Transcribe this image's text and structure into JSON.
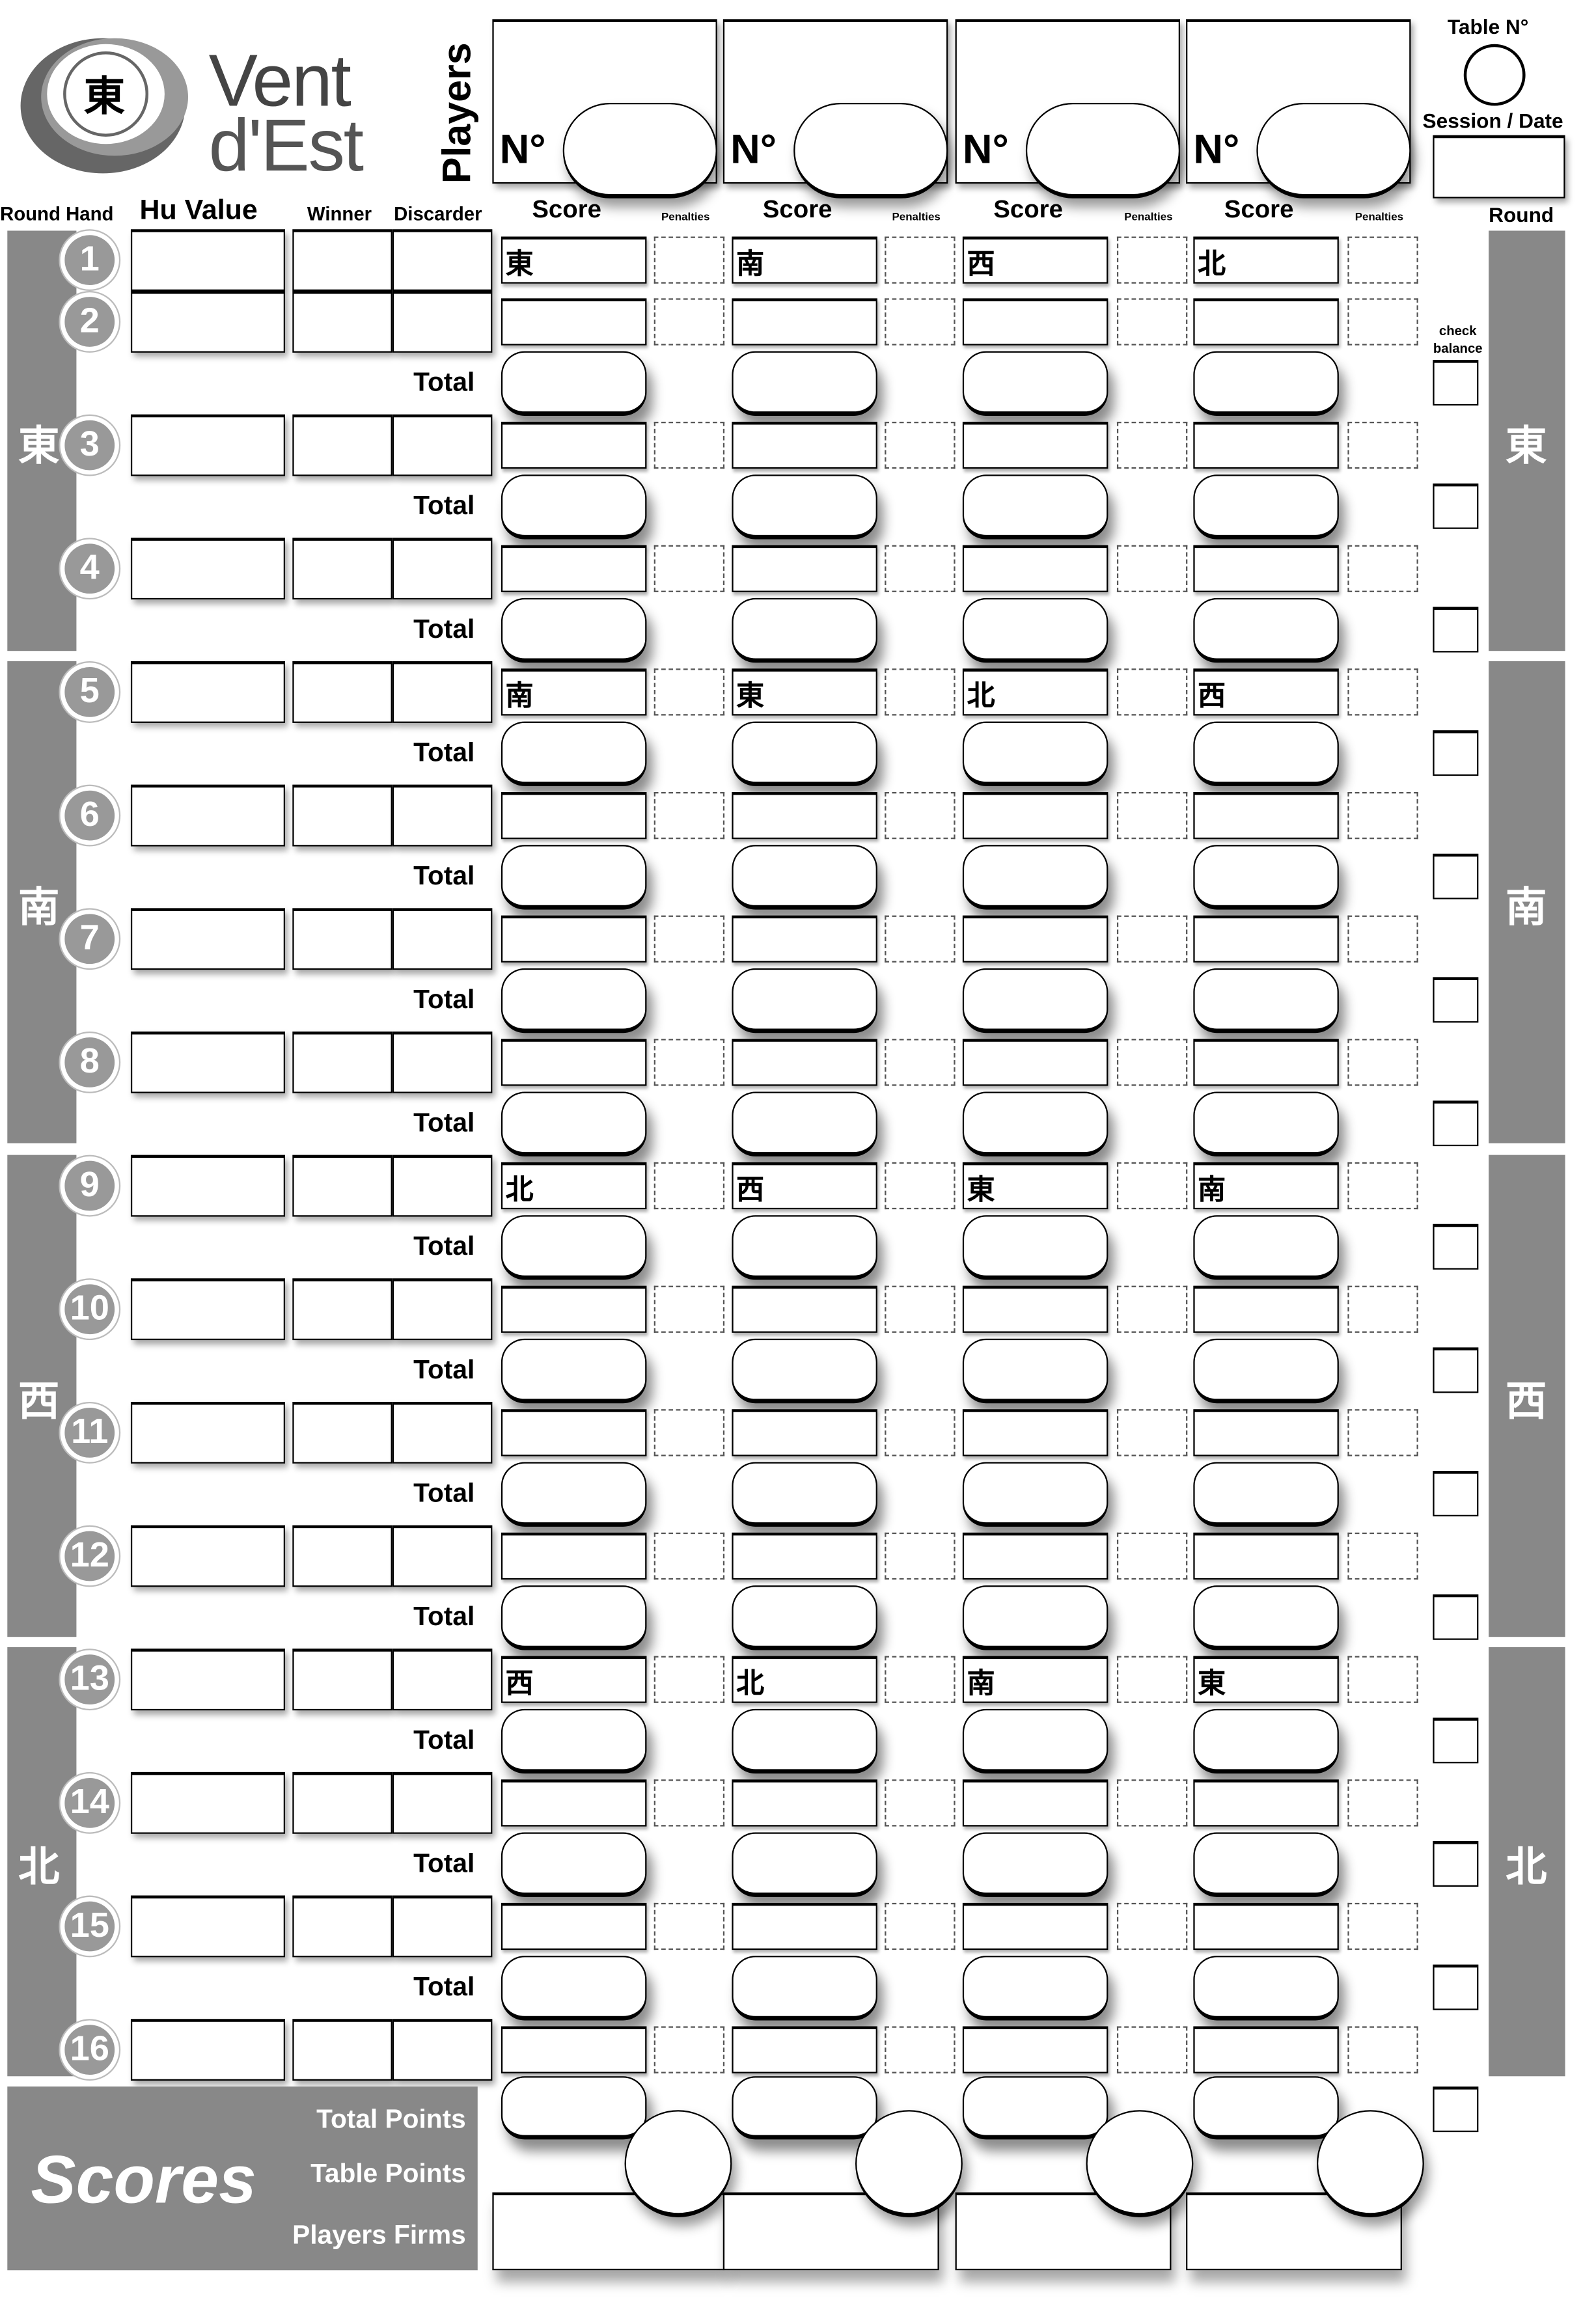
{
  "logo": {
    "line1": "Vent",
    "line2": "d'Est",
    "emblem": "東"
  },
  "players": {
    "title": "Players",
    "number_label": "N°",
    "count": 4
  },
  "table": {
    "table_label": "Table N°",
    "session_label": "Session / Date"
  },
  "headers": {
    "round_hand": "Round Hand",
    "hu_value": "Hu Value",
    "winner": "Winner",
    "discarder": "Discarder",
    "score": "Score",
    "penalties": "Penalties",
    "round": "Round"
  },
  "check_balance": "check balance",
  "total_label": "Total",
  "rounds": [
    {
      "wind": "東",
      "hands": [
        1,
        2,
        3,
        4
      ]
    },
    {
      "wind": "南",
      "hands": [
        5,
        6,
        7,
        8
      ]
    },
    {
      "wind": "西",
      "hands": [
        9,
        10,
        11,
        12
      ]
    },
    {
      "wind": "北",
      "hands": [
        13,
        14,
        15,
        16
      ]
    }
  ],
  "seat_winds": {
    "1": [
      "東",
      "南",
      "西",
      "北"
    ],
    "5": [
      "南",
      "東",
      "北",
      "西"
    ],
    "9": [
      "北",
      "西",
      "東",
      "南"
    ],
    "13": [
      "西",
      "北",
      "南",
      "東"
    ]
  },
  "scores": {
    "title": "Scores",
    "total_points": "Total Points",
    "table_points": "Table Points",
    "players_firms": "Players Firms"
  },
  "colors": {
    "band": "#888888",
    "ink": "#000000",
    "logo_grey": "#555555"
  }
}
